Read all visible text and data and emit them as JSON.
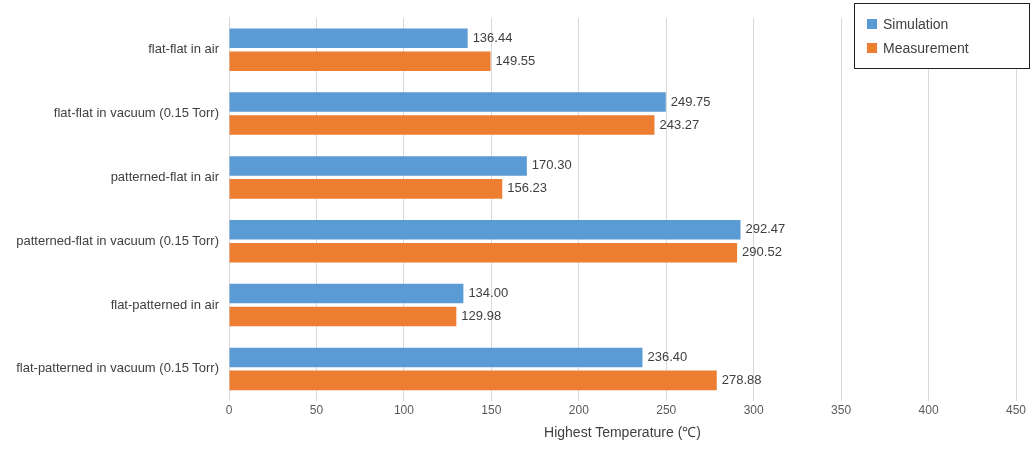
{
  "chart_data": {
    "type": "bar",
    "orientation": "horizontal",
    "xlabel": "Highest Temperature (℃)",
    "categories": [
      "flat-flat in air",
      "flat-flat in vacuum (0.15 Torr)",
      "patterned-flat in air",
      "patterned-flat in vacuum (0.15 Torr)",
      "flat-patterned in air",
      "flat-patterned in vacuum (0.15 Torr)"
    ],
    "series": [
      {
        "name": "Simulation",
        "color": "#5b9bd5",
        "values": [
          136.44,
          249.75,
          170.3,
          292.47,
          134,
          236.4
        ],
        "value_labels": [
          "136.44",
          "249.75",
          "170.30",
          "292.47",
          "134.00",
          "236.40"
        ]
      },
      {
        "name": "Measurement",
        "color": "#ed7d31",
        "values": [
          149.55,
          243.27,
          156.23,
          290.52,
          129.98,
          278.88
        ],
        "value_labels": [
          "149.55",
          "243.27",
          "156.23",
          "290.52",
          "129.98",
          "278.88"
        ]
      }
    ],
    "xlim": [
      0,
      450
    ],
    "xticks": [
      0,
      50,
      100,
      150,
      200,
      250,
      300,
      350,
      400,
      450
    ],
    "grid": "x",
    "legend": "top right"
  }
}
